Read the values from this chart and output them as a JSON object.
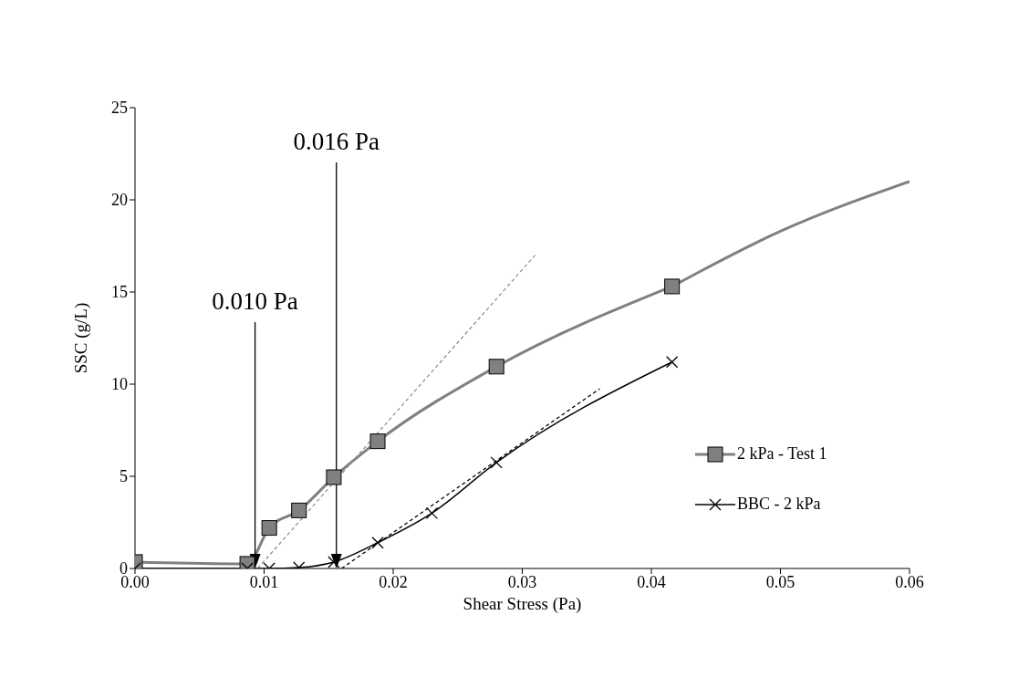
{
  "chart_data": {
    "type": "line",
    "xlabel": "Shear Stress (Pa)",
    "ylabel": "SSC (g/L)",
    "xlim": [
      0,
      0.06
    ],
    "xticks": [
      {
        "value": 0,
        "label": "0.00"
      },
      {
        "value": 0.01,
        "label": "0.01"
      },
      {
        "value": 0.02,
        "label": "0.02"
      },
      {
        "value": 0.03,
        "label": "0.03"
      },
      {
        "value": 0.04,
        "label": "0.04"
      },
      {
        "value": 0.05,
        "label": "0.05"
      },
      {
        "value": 0.06,
        "label": "0.06"
      }
    ],
    "ylim": [
      0,
      25
    ],
    "yticks": [
      0,
      5,
      10,
      15,
      20,
      25
    ],
    "grid": false,
    "legend": "bottom right",
    "line_style": "solid",
    "series": [
      {
        "name": "2 kPa - Test 1",
        "color": "#808080",
        "marker": "square",
        "x": [
          0,
          0.0087,
          0.0104,
          0.0127,
          0.0154,
          0.0188,
          0.028,
          0.0416
        ],
        "values": [
          0.35,
          0.25,
          2.2,
          3.15,
          4.95,
          6.9,
          10.95,
          15.3
        ]
      },
      {
        "color": "#808080",
        "marker": "none",
        "x": [
          0.0416,
          0.05,
          0.06
        ],
        "values": [
          15.3,
          18.3,
          21
        ]
      },
      {
        "name": "BBC - 2 kPa",
        "color": "#000000",
        "marker": "cross",
        "x": [
          0,
          0.0087,
          0.0104,
          0.0127,
          0.0154,
          0.0188,
          0.023,
          0.028,
          0.0416
        ],
        "values": [
          0,
          0,
          0,
          0.05,
          0.35,
          1.4,
          3.0,
          5.75,
          11.2
        ]
      },
      {
        "color": "#909090",
        "marker": "none",
        "line_style": "dashed",
        "x": [
          0.0095,
          0.031
        ],
        "values": [
          0,
          17
        ]
      },
      {
        "color": "#000000",
        "marker": "none",
        "line_style": "dashed",
        "x": [
          0.016,
          0.036
        ],
        "values": [
          0,
          9.75
        ]
      }
    ],
    "ref_lines": [
      {
        "axis": "x",
        "value": 0.0093,
        "label": "0.010 Pa",
        "color": "#000000"
      },
      {
        "axis": "x",
        "value": 0.0156,
        "label": "0.016 Pa",
        "color": "#000000"
      }
    ]
  }
}
